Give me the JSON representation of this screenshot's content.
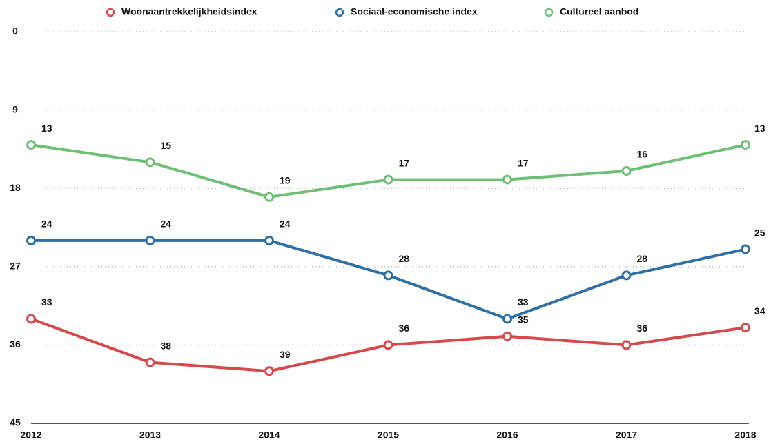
{
  "chart_data": {
    "type": "line",
    "categories": [
      "2012",
      "2013",
      "2014",
      "2015",
      "2016",
      "2017",
      "2018"
    ],
    "series": [
      {
        "name": "Woonaantrekkelijkheidsindex",
        "color": "#d9474a",
        "values": [
          33,
          38,
          39,
          36,
          35,
          36,
          34
        ]
      },
      {
        "name": "Sociaal-economische index",
        "color": "#2e6fa6",
        "values": [
          24,
          24,
          24,
          28,
          33,
          28,
          25
        ]
      },
      {
        "name": "Cultureel aanbod",
        "color": "#6dbf73",
        "values": [
          13,
          15,
          19,
          17,
          17,
          16,
          13
        ]
      }
    ],
    "ylim": [
      0,
      45
    ],
    "yticks": [
      0,
      9,
      18,
      27,
      36,
      45
    ],
    "y_inverted": true,
    "grid": true,
    "legend": "top"
  }
}
